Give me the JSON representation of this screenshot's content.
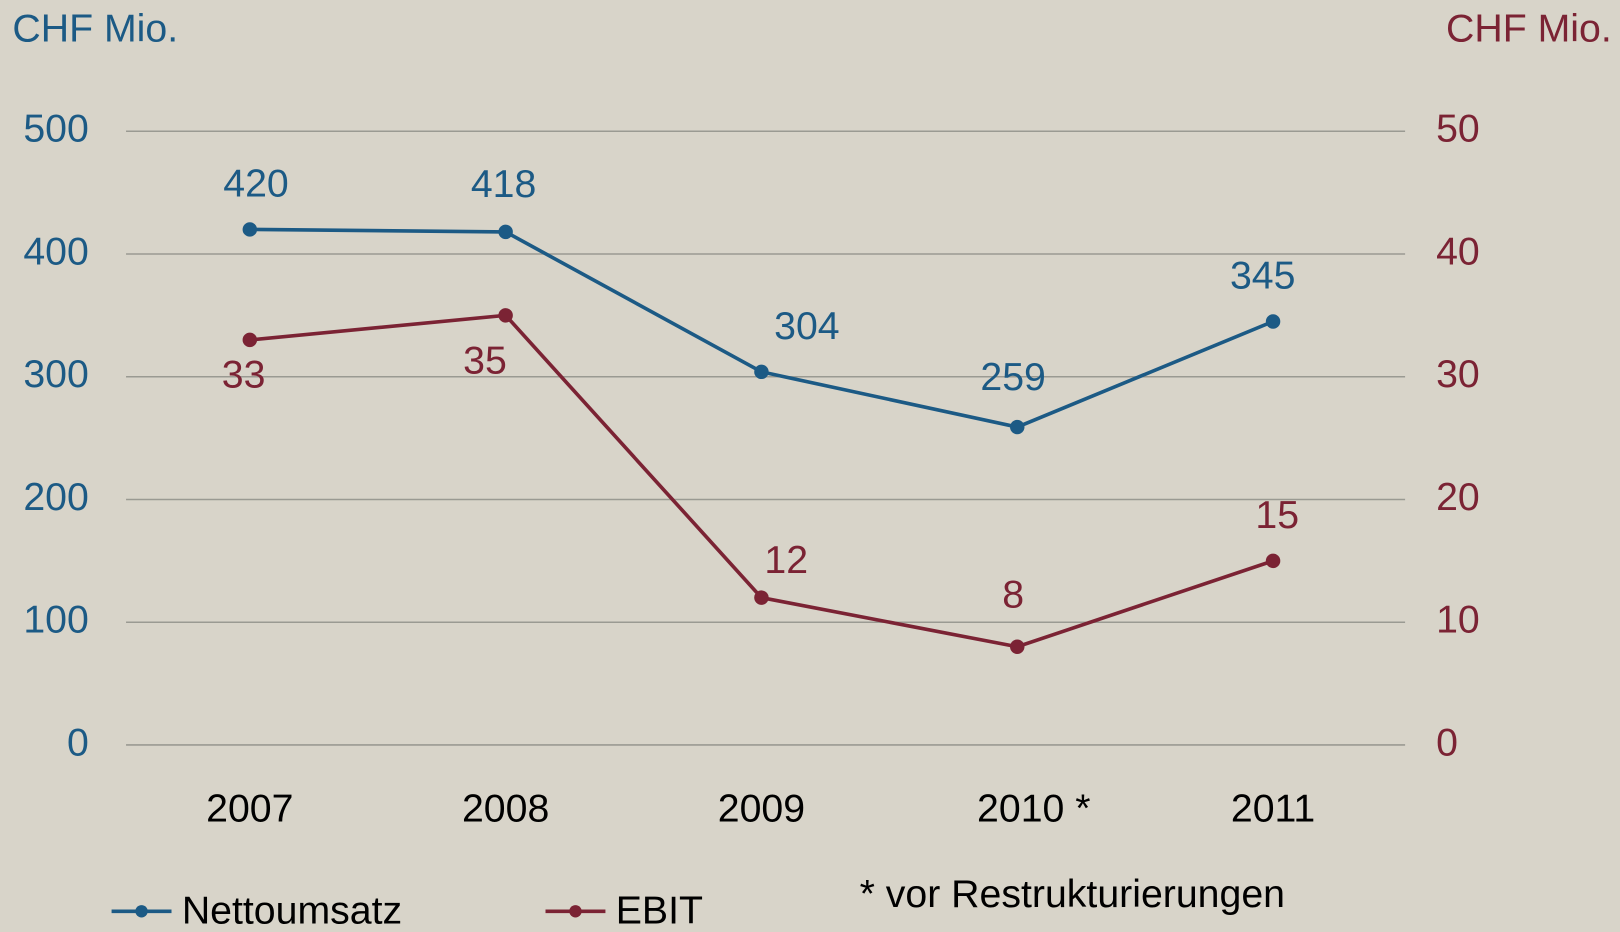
{
  "chart_data": {
    "type": "line",
    "y_label": "CHF Mio.",
    "y2_label": "CHF Mio.",
    "categories": [
      "2007",
      "2008",
      "2009",
      "2010 *",
      "2011"
    ],
    "series": [
      {
        "name": "Nettoumsatz",
        "color": "#1c5a85",
        "values": [
          420,
          418,
          304,
          259,
          345
        ]
      },
      {
        "name": "EBIT",
        "color": "#7b2334",
        "axis": "y2",
        "values": [
          33,
          35,
          12,
          8,
          15
        ]
      }
    ],
    "ylim": [
      0,
      500
    ],
    "yticks": [
      0,
      100,
      200,
      300,
      400,
      500
    ],
    "y2lim": [
      0,
      50
    ],
    "y2ticks": [
      0,
      10,
      20,
      30,
      40,
      50
    ],
    "grid": true,
    "legend": "bottom-left",
    "annotation": "* vor  Restrukturierungen"
  }
}
